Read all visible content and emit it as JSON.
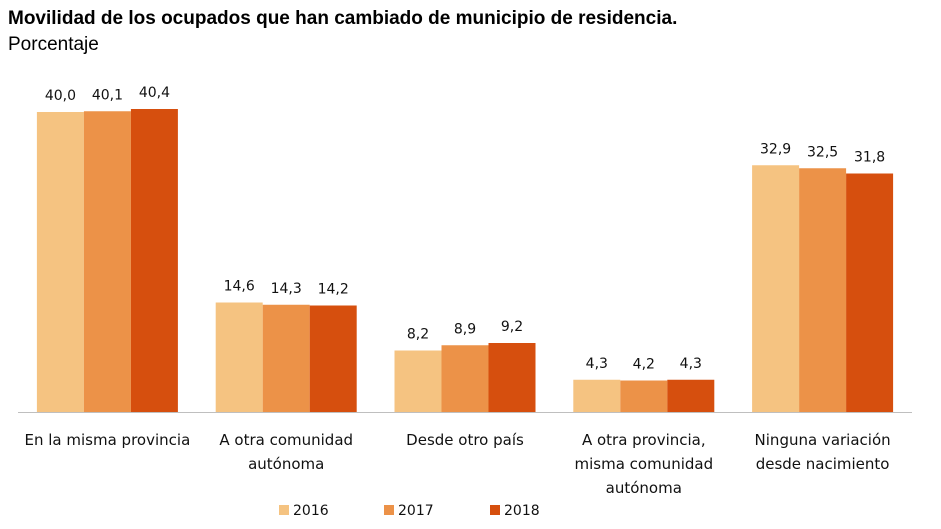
{
  "chart_data": {
    "type": "bar",
    "title": "Movilidad de los ocupados que han cambiado de municipio de residencia.",
    "subtitle": "Porcentaje",
    "categories": [
      [
        "En la misma provincia"
      ],
      [
        "A otra comunidad",
        "autónoma"
      ],
      [
        "Desde otro país"
      ],
      [
        "A otra provincia,",
        "misma comunidad",
        "autónoma"
      ],
      [
        "Ninguna variación",
        "desde nacimiento"
      ]
    ],
    "series": [
      {
        "name": "2016",
        "color": "#F5C381",
        "values": [
          40.0,
          14.6,
          8.2,
          4.3,
          32.9
        ],
        "labels": [
          "40,0",
          "14,6",
          "8,2",
          "4,3",
          "32,9"
        ]
      },
      {
        "name": "2017",
        "color": "#EC9248",
        "values": [
          40.1,
          14.3,
          8.9,
          4.2,
          32.5
        ],
        "labels": [
          "40,1",
          "14,3",
          "8,9",
          "4,2",
          "32,5"
        ]
      },
      {
        "name": "2018",
        "color": "#D64F0E",
        "values": [
          40.4,
          14.2,
          9.2,
          4.3,
          31.8
        ],
        "labels": [
          "40,4",
          "14,2",
          "9,2",
          "4,3",
          "31,8"
        ]
      }
    ],
    "ylim": [
      0,
      40.4
    ],
    "grid": false,
    "legend_position": "bottom"
  }
}
